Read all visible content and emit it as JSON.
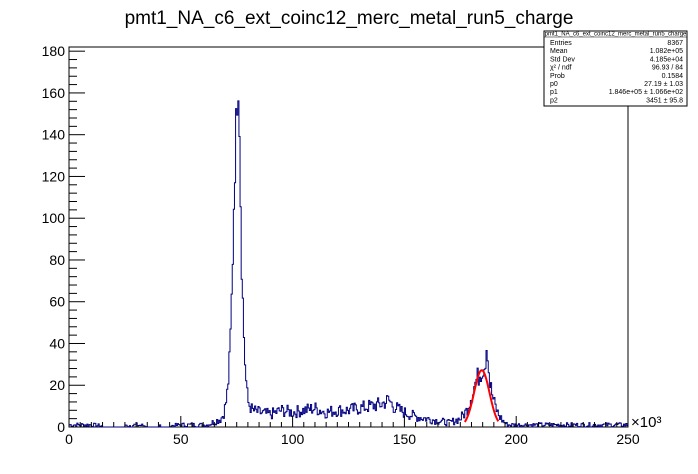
{
  "chart_data": {
    "type": "histogram",
    "title": "pmt1_NA_c6_ext_coinc12_merc_metal_run5_charge",
    "xlabel": "",
    "ylabel": "",
    "x_multiplier_label": "×10³",
    "xlim": [
      0,
      250
    ],
    "ylim": [
      0,
      182
    ],
    "x_ticks": [
      0,
      50,
      100,
      150,
      200,
      250
    ],
    "y_ticks": [
      0,
      20,
      40,
      60,
      80,
      100,
      120,
      140,
      160,
      180
    ],
    "x_tick_labels": [
      "0",
      "50",
      "100",
      "150",
      "200",
      "250"
    ],
    "y_tick_labels": [
      "0",
      "20",
      "40",
      "60",
      "80",
      "100",
      "120",
      "140",
      "160",
      "180"
    ],
    "grid": false,
    "histogram_color": "#000080",
    "fit_color": "#ff0000",
    "series": [
      {
        "kind": "histogram",
        "x": [
          5,
          10,
          20,
          30,
          40,
          50,
          57,
          62,
          64,
          66,
          68,
          69,
          70,
          71,
          72,
          73,
          74,
          75,
          75.5,
          76,
          76.5,
          77,
          78,
          79,
          80,
          82,
          85,
          90,
          95,
          100,
          105,
          110,
          115,
          120,
          125,
          130,
          135,
          140,
          143,
          145,
          148,
          150,
          155,
          160,
          165,
          170,
          175,
          178,
          180,
          182,
          184,
          185,
          186,
          187,
          188,
          190,
          192,
          194,
          196,
          200,
          210,
          220,
          230,
          240
        ],
        "y": [
          1,
          1,
          0,
          1,
          0,
          1,
          1,
          1,
          2,
          3,
          4,
          6,
          10,
          18,
          35,
          70,
          120,
          150,
          172,
          165,
          130,
          90,
          50,
          25,
          12,
          8,
          7,
          6,
          8,
          7,
          8,
          9,
          7,
          8,
          8,
          9,
          10,
          11,
          13,
          10,
          8,
          7,
          5,
          4,
          3,
          2,
          4,
          8,
          15,
          22,
          26,
          28,
          30,
          42,
          22,
          12,
          6,
          3,
          1,
          1,
          1,
          1,
          1,
          1
        ]
      },
      {
        "kind": "fit",
        "name": "gaus",
        "amplitude": 27.19,
        "mean": 184.6,
        "sigma": 3.451,
        "x_range": [
          177,
          192
        ]
      }
    ]
  },
  "stats_box": {
    "title": "pmt1_NA_c6_ext_coinc12_merc_metal_run5_charge",
    "rows": [
      {
        "label": "Entries",
        "value": "8367"
      },
      {
        "label": "Mean",
        "value": "1.082e+05"
      },
      {
        "label": "Std Dev",
        "value": "4.185e+04"
      },
      {
        "label": "χ² / ndf",
        "value": "96.93 / 84"
      },
      {
        "label": "Prob",
        "value": "0.1584"
      },
      {
        "label": "p0",
        "value": "27.19 ± 1.03"
      },
      {
        "label": "p1",
        "value": "1.846e+05 ± 1.066e+02"
      },
      {
        "label": "p2",
        "value": "3451 ± 95.8"
      }
    ]
  }
}
